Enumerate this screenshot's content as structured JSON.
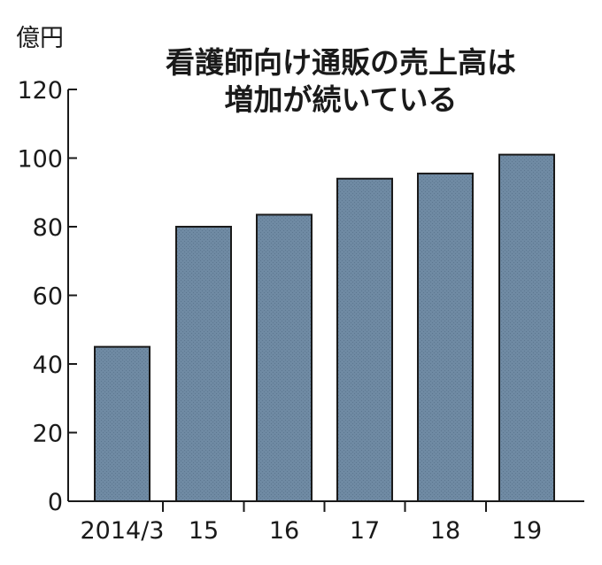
{
  "chart_data": {
    "type": "bar",
    "title_lines": [
      "看護師向け通販の売上高は",
      "増加が続いている"
    ],
    "ylabel": "億円",
    "xlabel": "",
    "categories": [
      "2014/3",
      "15",
      "16",
      "17",
      "18",
      "19"
    ],
    "values": [
      45,
      80,
      83.5,
      94,
      95.5,
      101
    ],
    "ylim": [
      0,
      120
    ],
    "yticks": [
      0,
      20,
      40,
      60,
      80,
      100,
      120
    ],
    "grid": false,
    "legend": "none",
    "colors": {
      "bar_fill": "#6f8aa3",
      "bar_stroke": "#1a1a1a",
      "axis": "#1a1a1a",
      "text": "#1a1a1a"
    }
  }
}
